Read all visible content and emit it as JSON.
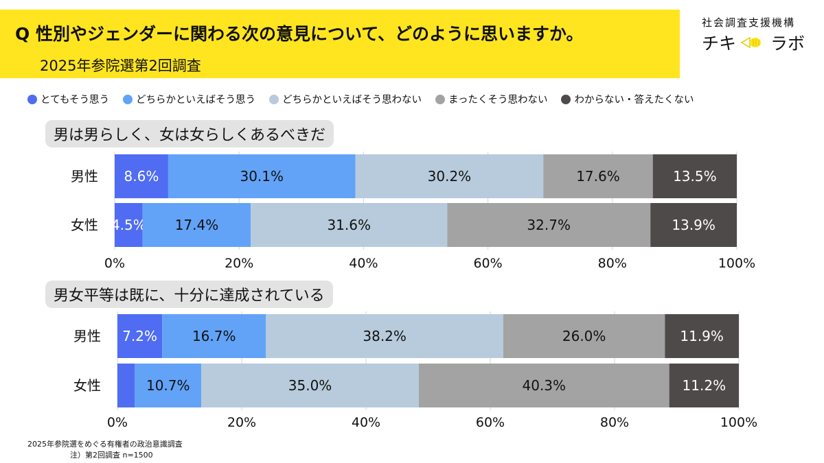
{
  "header": {
    "question": "Q 性別やジェンダーに関わる次の意見について、どのように思いますか。",
    "survey": "2025年参院選第2回調査"
  },
  "logo": {
    "org": "社会調査支援機構",
    "name_left": "チキ",
    "name_right": "ラボ",
    "mark_color": "#ffe51f"
  },
  "legend": [
    {
      "label": "とてもそう思う",
      "color": "#4f6cf2"
    },
    {
      "label": "どちらかといえばそう思う",
      "color": "#62a3f7"
    },
    {
      "label": "どちらかといえばそう思わない",
      "color": "#b7cbdc"
    },
    {
      "label": "まったくそう思わない",
      "color": "#a3a3a3"
    },
    {
      "label": "わからない・答えたくない",
      "color": "#4f4a4a"
    }
  ],
  "chart_data": [
    {
      "type": "bar",
      "orientation": "horizontal-stacked",
      "title": "男は男らしく、女は女らしくあるべきだ",
      "categories": [
        "男性",
        "女性"
      ],
      "series": [
        {
          "name": "とてもそう思う",
          "values": [
            8.6,
            4.5
          ],
          "labels": [
            "8.6%",
            "4.5%"
          ]
        },
        {
          "name": "どちらかといえばそう思う",
          "values": [
            30.1,
            17.4
          ],
          "labels": [
            "30.1%",
            "17.4%"
          ]
        },
        {
          "name": "どちらかといえばそう思わない",
          "values": [
            30.2,
            31.6
          ],
          "labels": [
            "30.2%",
            "31.6%"
          ]
        },
        {
          "name": "まったくそう思わない",
          "values": [
            17.6,
            32.7
          ],
          "labels": [
            "17.6%",
            "32.7%"
          ]
        },
        {
          "name": "わからない・答えたくない",
          "values": [
            13.5,
            13.9
          ],
          "labels": [
            "13.5%",
            "13.9%"
          ]
        }
      ],
      "xlim": [
        0,
        100
      ],
      "xticks": [
        "0%",
        "20%",
        "40%",
        "60%",
        "80%",
        "100%"
      ],
      "grid": true,
      "legend_position": "top"
    },
    {
      "type": "bar",
      "orientation": "horizontal-stacked",
      "title": "男女平等は既に、十分に達成されている",
      "categories": [
        "男性",
        "女性"
      ],
      "series": [
        {
          "name": "とてもそう思う",
          "values": [
            7.2,
            2.8
          ],
          "labels": [
            "7.2%",
            ""
          ]
        },
        {
          "name": "どちらかといえばそう思う",
          "values": [
            16.7,
            10.7
          ],
          "labels": [
            "16.7%",
            "10.7%"
          ]
        },
        {
          "name": "どちらかといえばそう思わない",
          "values": [
            38.2,
            35.0
          ],
          "labels": [
            "38.2%",
            "35.0%"
          ]
        },
        {
          "name": "まったくそう思わない",
          "values": [
            26.0,
            40.3
          ],
          "labels": [
            "26.0%",
            "40.3%"
          ]
        },
        {
          "name": "わからない・答えたくない",
          "values": [
            11.9,
            11.2
          ],
          "labels": [
            "11.9%",
            "11.2%"
          ]
        }
      ],
      "xlim": [
        0,
        100
      ],
      "xticks": [
        "0%",
        "20%",
        "40%",
        "60%",
        "80%",
        "100%"
      ],
      "grid": true,
      "legend_position": "top"
    }
  ],
  "footer": {
    "source": "2025年参院選をめぐる有権者の政治意識調査",
    "note": "注）第2回調査 n=1500"
  }
}
